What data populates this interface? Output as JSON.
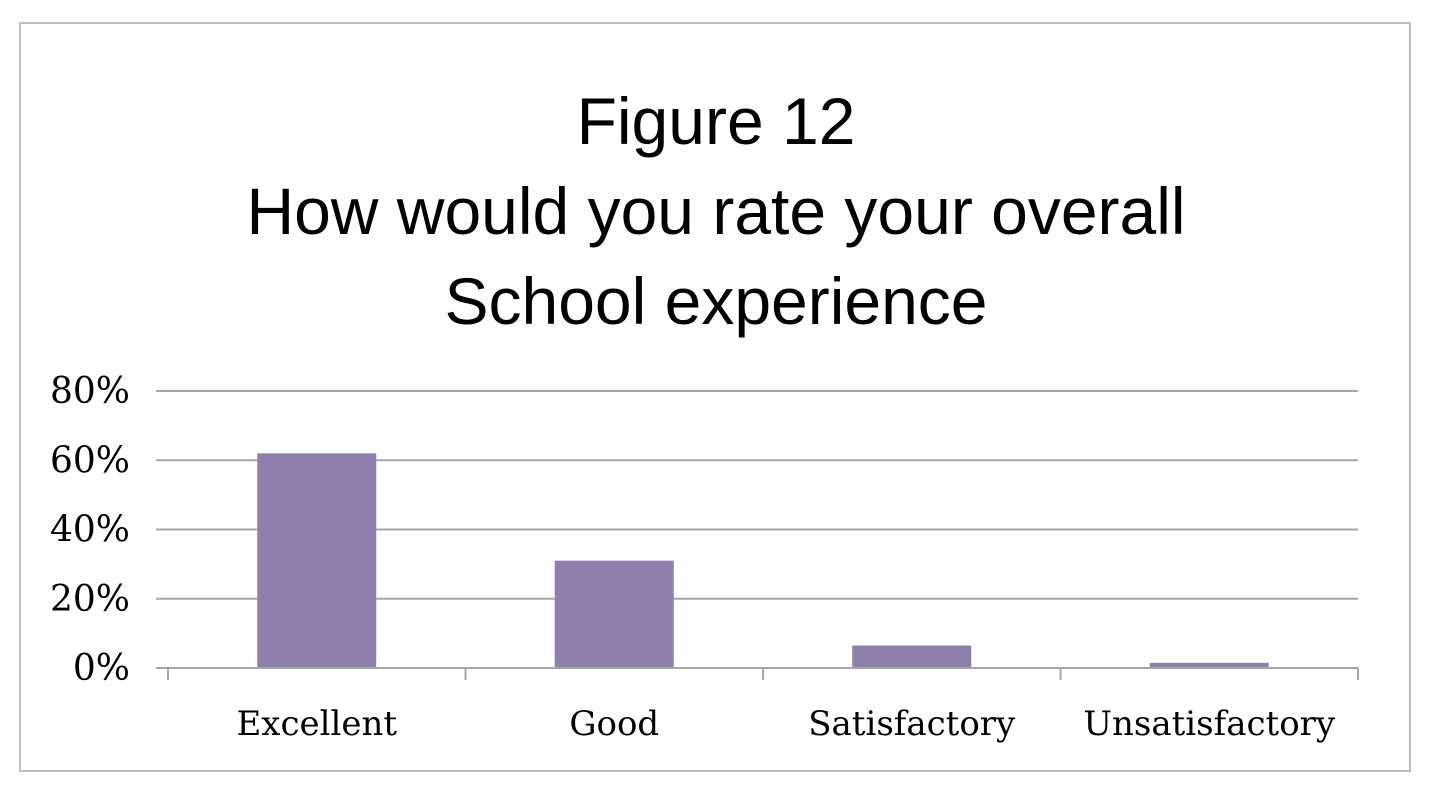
{
  "chart_data": {
    "type": "bar",
    "title_lines": [
      "Figure 12",
      "How would you rate your overall",
      "School experience"
    ],
    "categories": [
      "Excellent",
      "Good",
      "Satisfactory",
      "Unsatisfactory"
    ],
    "values": [
      62,
      31,
      6.5,
      1.5
    ],
    "ylim": [
      0,
      80
    ],
    "yticks": [
      {
        "value": 0,
        "label": "0%"
      },
      {
        "value": 20,
        "label": "20%"
      },
      {
        "value": 40,
        "label": "40%"
      },
      {
        "value": 60,
        "label": "60%"
      },
      {
        "value": 80,
        "label": "80%"
      }
    ],
    "grid": true,
    "bar_color": "#8e7fad",
    "grid_color": "#a6a6a6"
  }
}
